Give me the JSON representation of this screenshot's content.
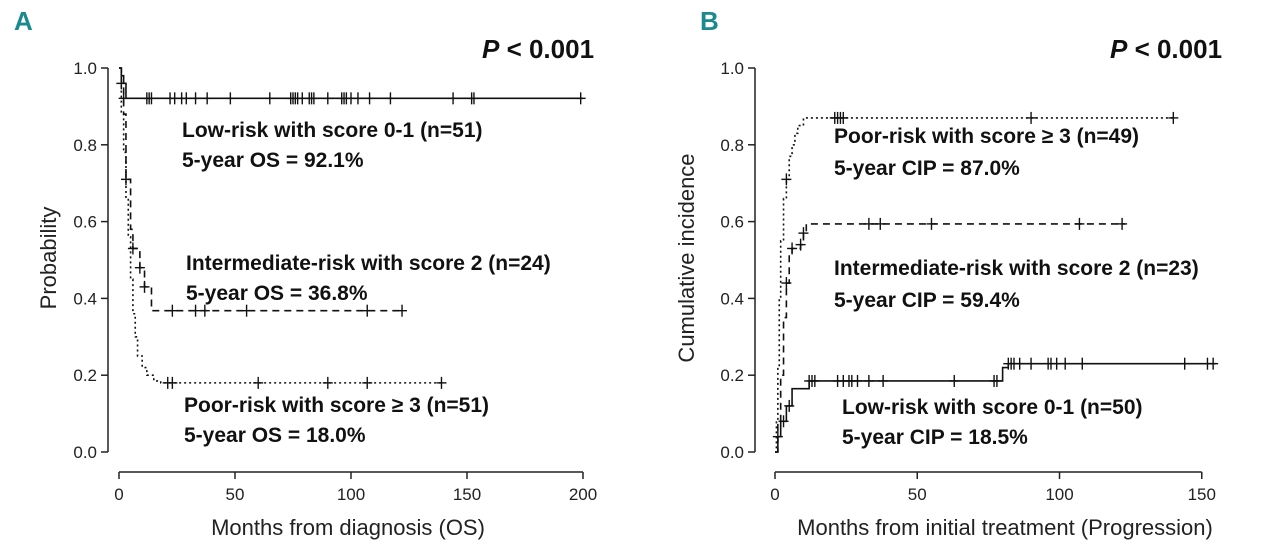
{
  "chart_data": [
    {
      "type": "line",
      "panel": "A",
      "title": "",
      "pvalue": {
        "label": "P",
        "rest": " < 0.001"
      },
      "xlabel": "Months from diagnosis (OS)",
      "ylabel": "Probability",
      "xlim": [
        0,
        200
      ],
      "ylim": [
        0,
        1.0
      ],
      "xticks": [
        0,
        50,
        100,
        150,
        200
      ],
      "yticks": [
        0.0,
        0.2,
        0.4,
        0.6,
        0.8,
        1.0
      ],
      "ytick_labels": [
        "0.0",
        "0.2",
        "0.4",
        "0.6",
        "0.8",
        "1.0"
      ],
      "series": [
        {
          "name": "Low-risk with score 0-1 (n=51)",
          "stat": "5-year OS  = 92.1%",
          "style": "solid",
          "steps": [
            [
              0,
              1.0
            ],
            [
              1,
              0.98
            ],
            [
              2,
              0.96
            ],
            [
              3,
              0.921
            ],
            [
              200,
              0.921
            ]
          ],
          "censor_x": [
            2,
            12,
            13,
            14,
            22,
            24,
            27,
            29,
            33,
            38,
            48,
            65,
            74,
            75,
            76,
            77,
            79,
            82,
            83,
            84,
            90,
            96,
            97,
            98,
            100,
            103,
            108,
            117,
            144,
            152,
            153,
            199
          ],
          "censor_y": 0.921
        },
        {
          "name": "Intermediate-risk with score 2 (n=24)",
          "stat": "5-year OS  = 36.8%",
          "style": "dashed",
          "steps": [
            [
              0,
              1.0
            ],
            [
              1,
              0.96
            ],
            [
              2,
              0.88
            ],
            [
              3,
              0.71
            ],
            [
              5,
              0.58
            ],
            [
              6,
              0.53
            ],
            [
              9,
              0.48
            ],
            [
              11,
              0.43
            ],
            [
              14,
              0.368
            ],
            [
              123,
              0.368
            ]
          ],
          "censor_x": [
            1,
            3,
            6,
            9,
            11,
            23,
            33,
            37,
            55,
            107,
            122
          ],
          "censor_y_by_step": true
        },
        {
          "name": "Poor-risk with score ≥ 3 (n=51)",
          "stat": "5-year OS  = 18.0%",
          "style": "dotted",
          "steps": [
            [
              0,
              1.0
            ],
            [
              1,
              0.88
            ],
            [
              2,
              0.78
            ],
            [
              3,
              0.66
            ],
            [
              4,
              0.56
            ],
            [
              5,
              0.45
            ],
            [
              6,
              0.36
            ],
            [
              7,
              0.3
            ],
            [
              8,
              0.25
            ],
            [
              10,
              0.22
            ],
            [
              12,
              0.2
            ],
            [
              15,
              0.185
            ],
            [
              18,
              0.18
            ],
            [
              140,
              0.18
            ]
          ],
          "censor_x": [
            21,
            23,
            60,
            90,
            107,
            139
          ],
          "censor_y": 0.18
        }
      ]
    },
    {
      "type": "line",
      "panel": "B",
      "title": "",
      "pvalue": {
        "label": "P",
        "rest": " < 0.001"
      },
      "xlabel": "Months from initial treatment (Progression)",
      "ylabel": "Cumulative incidence",
      "xlim": [
        0,
        155
      ],
      "ylim": [
        0,
        1.0
      ],
      "xticks": [
        0,
        50,
        100,
        150
      ],
      "yticks": [
        0.0,
        0.2,
        0.4,
        0.6,
        0.8,
        1.0
      ],
      "ytick_labels": [
        "0.0",
        "0.2",
        "0.4",
        "0.6",
        "0.8",
        "1.0"
      ],
      "series": [
        {
          "name": "Poor-risk with score ≥ 3 (n=49)",
          "stat": "5-year CIP  = 87.0%",
          "style": "dotted",
          "steps": [
            [
              0,
              0
            ],
            [
              0.5,
              0.08
            ],
            [
              1,
              0.22
            ],
            [
              1.5,
              0.4
            ],
            [
              2,
              0.55
            ],
            [
              3,
              0.66
            ],
            [
              4,
              0.71
            ],
            [
              5,
              0.77
            ],
            [
              6,
              0.8
            ],
            [
              7,
              0.83
            ],
            [
              8,
              0.85
            ],
            [
              10,
              0.87
            ],
            [
              140,
              0.87
            ]
          ],
          "censor_x": [
            4,
            21,
            22,
            23,
            24,
            90,
            140
          ],
          "censor_y_by_step": true
        },
        {
          "name": "Intermediate-risk with score 2 (n=23)",
          "stat": "5-year CIP  = 59.4%",
          "style": "dashed",
          "steps": [
            [
              0,
              0
            ],
            [
              1,
              0.08
            ],
            [
              2,
              0.2
            ],
            [
              3,
              0.35
            ],
            [
              4,
              0.44
            ],
            [
              5,
              0.52
            ],
            [
              6,
              0.53
            ],
            [
              9,
              0.54
            ],
            [
              10,
              0.57
            ],
            [
              11,
              0.594
            ],
            [
              123,
              0.594
            ]
          ],
          "censor_x": [
            4,
            6,
            9,
            10,
            33,
            37,
            55,
            107,
            122
          ],
          "censor_y_by_step": true
        },
        {
          "name": "Low-risk with score 0-1 (n=50)",
          "stat": "5-year CIP  = 18.5%",
          "style": "solid",
          "steps": [
            [
              0,
              0
            ],
            [
              1,
              0.04
            ],
            [
              2,
              0.08
            ],
            [
              4,
              0.12
            ],
            [
              6,
              0.165
            ],
            [
              12,
              0.185
            ],
            [
              78,
              0.185
            ],
            [
              80,
              0.22
            ],
            [
              82,
              0.23
            ],
            [
              155,
              0.23
            ]
          ],
          "censor_x": [
            1,
            3,
            5,
            12,
            13,
            14,
            22,
            24,
            26,
            27,
            29,
            33,
            38,
            63,
            77,
            78,
            82,
            83,
            84,
            86,
            90,
            96,
            97,
            99,
            102,
            108,
            144,
            152,
            154
          ],
          "censor_y_by_step": true
        }
      ]
    }
  ]
}
